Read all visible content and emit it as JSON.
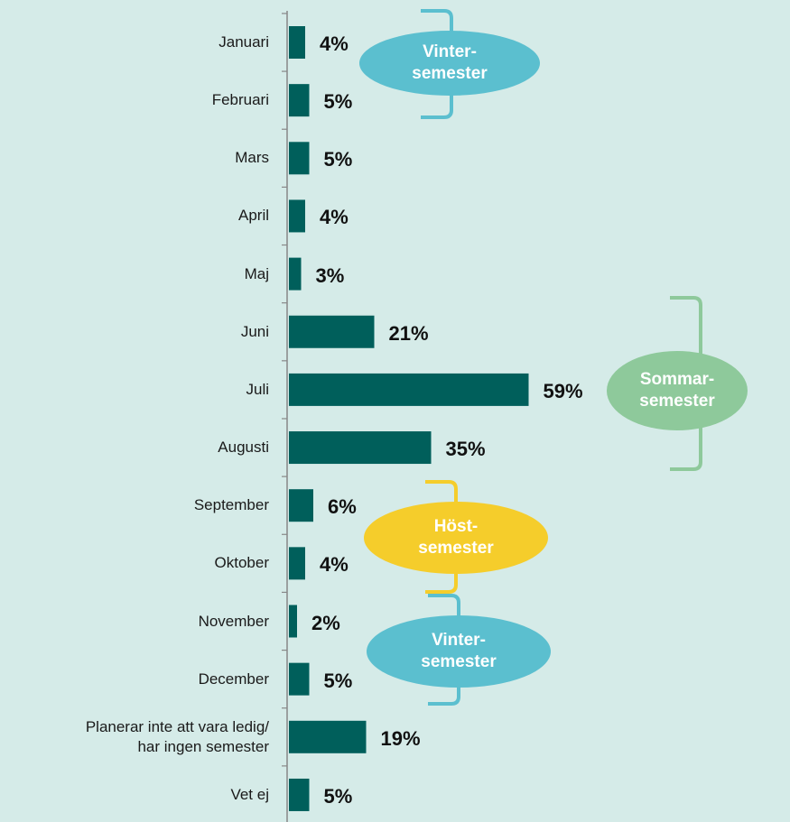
{
  "chart_data": {
    "type": "bar",
    "orientation": "horizontal",
    "categories": [
      "Januari",
      "Februari",
      "Mars",
      "April",
      "Maj",
      "Juni",
      "Juli",
      "Augusti",
      "September",
      "Oktober",
      "November",
      "December",
      "Planerar inte att vara ledig/\nhar ingen semester",
      "Vet ej"
    ],
    "values": [
      4,
      5,
      5,
      4,
      3,
      21,
      59,
      35,
      6,
      4,
      2,
      5,
      19,
      5
    ],
    "value_labels": [
      "4%",
      "5%",
      "5%",
      "4%",
      "3%",
      "21%",
      "59%",
      "35%",
      "6%",
      "4%",
      "2%",
      "5%",
      "19%",
      "5%"
    ],
    "color": "#005f5b",
    "xlim": [
      0,
      60
    ],
    "annotations": [
      {
        "text": "Vinter-\nsemester",
        "color": "#5bbfcf"
      },
      {
        "text": "Sommar-\nsemester",
        "color": "#8ec99b"
      },
      {
        "text": "Höst-\nsemester",
        "color": "#f5cd2b"
      },
      {
        "text": "Vinter-\nsemester",
        "color": "#5bbfcf"
      }
    ]
  }
}
